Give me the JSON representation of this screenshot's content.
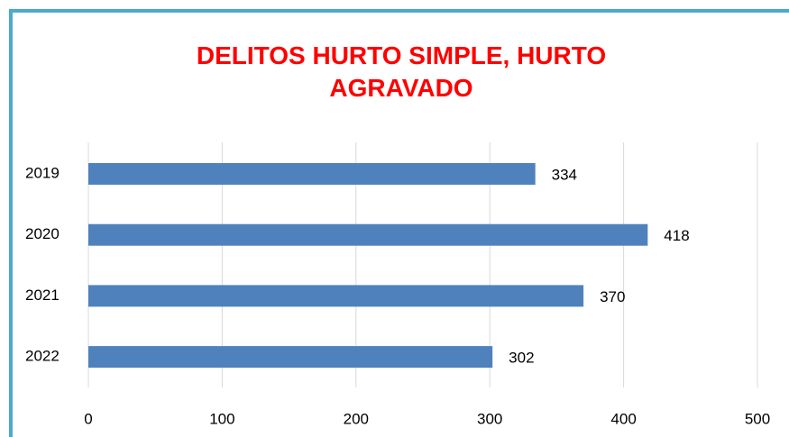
{
  "chart_data": {
    "type": "bar",
    "orientation": "horizontal",
    "title": "DELITOS HURTO SIMPLE, HURTO AGRAVADO",
    "categories": [
      "2019",
      "2020",
      "2021",
      "2022"
    ],
    "values": [
      334,
      418,
      370,
      302
    ],
    "color": "#4f81bd",
    "xlim": [
      0,
      500
    ],
    "xticks": [
      0,
      100,
      200,
      300,
      400,
      500
    ],
    "grid": true
  }
}
